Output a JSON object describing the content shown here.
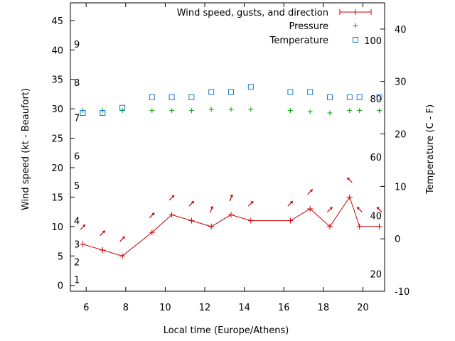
{
  "chart_data": {
    "type": "line",
    "title": "",
    "xlabel": "Local time (Europe/Athens)",
    "ylabel": "Wind speed (kt - Beaufort)",
    "y2label": "Temperature (C - F)",
    "xlim": [
      5.2,
      21.1
    ],
    "ylim": [
      -1,
      48
    ],
    "y2lim": [
      -10,
      45
    ],
    "x_ticks": [
      6,
      8,
      10,
      12,
      14,
      16,
      18,
      20
    ],
    "y_ticks": [
      0,
      5,
      10,
      15,
      20,
      25,
      30,
      35,
      40,
      45
    ],
    "y2_ticks": [
      -10,
      0,
      10,
      20,
      30,
      40
    ],
    "beaufort_labels": [
      {
        "label": "1",
        "y": 1
      },
      {
        "label": "2",
        "y": 4
      },
      {
        "label": "3",
        "y": 7
      },
      {
        "label": "4",
        "y": 11
      },
      {
        "label": "5",
        "y": 17
      },
      {
        "label": "6",
        "y": 22
      },
      {
        "label": "7",
        "y": 28.5
      },
      {
        "label": "8",
        "y": 34.5
      },
      {
        "label": "9",
        "y": 41
      }
    ],
    "fahrenheit_labels": [
      {
        "label": "20",
        "y2": -6.7
      },
      {
        "label": "40",
        "y2": 4.4
      },
      {
        "label": "60",
        "y2": 15.6
      },
      {
        "label": "80",
        "y2": 26.7
      },
      {
        "label": "100",
        "y2": 37.8
      }
    ],
    "legend": {
      "position": "top-right",
      "entries": [
        "Wind speed, gusts, and direction",
        "Pressure",
        "Temperature"
      ]
    },
    "series": [
      {
        "name": "Wind speed, gusts, and direction",
        "axis": "y",
        "color": "#cc0000",
        "x": [
          5.83,
          6.83,
          7.83,
          9.33,
          10.33,
          11.33,
          12.33,
          13.33,
          14.33,
          16.33,
          17.33,
          18.33,
          19.33,
          19.83,
          20.83
        ],
        "y": [
          7,
          6,
          5,
          9,
          12,
          11,
          10,
          12,
          11,
          11,
          13,
          10,
          15,
          10,
          10
        ],
        "direction_deg": [
          225,
          225,
          225,
          225,
          225,
          225,
          200,
          200,
          225,
          225,
          225,
          225,
          135,
          135,
          135
        ]
      },
      {
        "name": "Pressure",
        "axis": "y",
        "color": "#00aa00",
        "x": [
          5.83,
          6.83,
          7.83,
          9.33,
          10.33,
          11.33,
          12.33,
          13.33,
          14.33,
          16.33,
          17.33,
          18.33,
          19.33,
          19.83,
          20.83
        ],
        "y": [
          29.7,
          29.7,
          29.7,
          29.7,
          29.7,
          29.7,
          29.9,
          29.9,
          29.9,
          29.7,
          29.5,
          29.3,
          29.7,
          29.7,
          29.7
        ]
      },
      {
        "name": "Temperature",
        "axis": "y2",
        "color": "#1e78c8",
        "x": [
          5.83,
          6.83,
          7.83,
          9.33,
          10.33,
          11.33,
          12.33,
          13.33,
          14.33,
          16.33,
          17.33,
          18.33,
          19.33,
          19.83,
          20.83
        ],
        "y": [
          24,
          24,
          25,
          27,
          27,
          27,
          28,
          28,
          29,
          28,
          28,
          27,
          27,
          27,
          27
        ]
      }
    ]
  }
}
